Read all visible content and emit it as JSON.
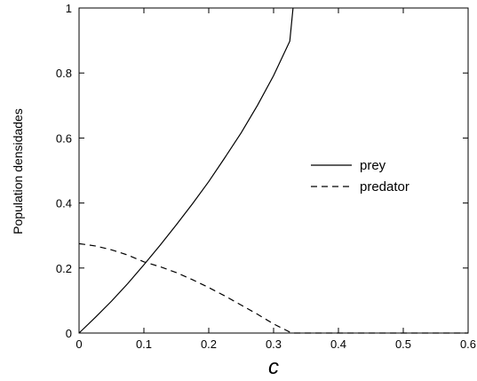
{
  "chart_data": {
    "type": "line",
    "title": "",
    "xlabel": "c",
    "ylabel": "Population densidades",
    "xlim": [
      0,
      0.6
    ],
    "ylim": [
      0,
      1
    ],
    "xticks": [
      "0",
      "0.1",
      "0.2",
      "0.3",
      "0.4",
      "0.5",
      "0.6"
    ],
    "yticks": [
      "0",
      "0.2",
      "0.4",
      "0.6",
      "0.8",
      "1"
    ],
    "grid": false,
    "legend_position": "right-middle",
    "series": [
      {
        "name": "prey",
        "style": "solid",
        "color": "#000000",
        "x": [
          0,
          0.025,
          0.05,
          0.075,
          0.1,
          0.125,
          0.15,
          0.175,
          0.2,
          0.225,
          0.25,
          0.275,
          0.3,
          0.325,
          0.33
        ],
        "y": [
          0,
          0.048,
          0.098,
          0.152,
          0.21,
          0.27,
          0.333,
          0.398,
          0.466,
          0.54,
          0.616,
          0.7,
          0.792,
          0.898,
          1.0
        ]
      },
      {
        "name": "predator",
        "style": "dashed",
        "color": "#000000",
        "x": [
          0,
          0.025,
          0.05,
          0.075,
          0.1,
          0.125,
          0.15,
          0.175,
          0.2,
          0.225,
          0.25,
          0.275,
          0.3,
          0.325,
          0.33,
          0.4,
          0.5,
          0.6
        ],
        "y": [
          0.275,
          0.268,
          0.256,
          0.24,
          0.219,
          0.204,
          0.186,
          0.164,
          0.14,
          0.114,
          0.086,
          0.058,
          0.028,
          0.003,
          0,
          0,
          0,
          0
        ]
      }
    ]
  }
}
